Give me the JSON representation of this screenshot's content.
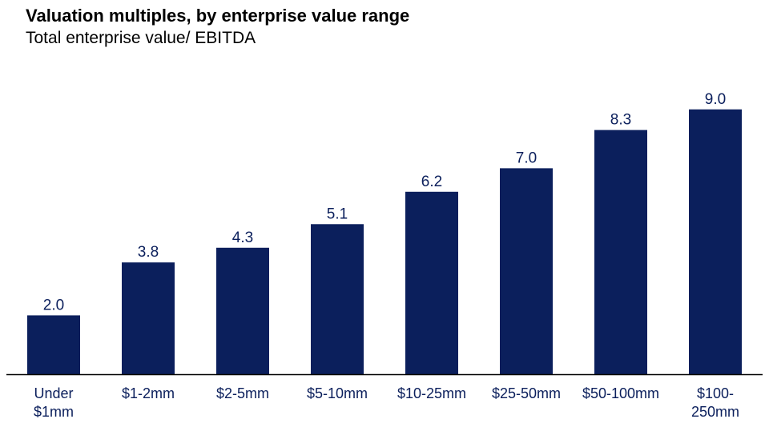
{
  "chart_data": {
    "type": "bar",
    "title": "Valuation multiples, by enterprise value range",
    "subtitle": "Total enterprise value/ EBITDA",
    "xlabel": "",
    "ylabel": "",
    "categories": [
      "Under $1mm",
      "$1-2mm",
      "$2-5mm",
      "$5-10mm",
      "$10-25mm",
      "$25-50mm",
      "$50-100mm",
      "$100-250mm"
    ],
    "category_lines": [
      [
        "Under",
        "$1mm"
      ],
      [
        "$1-2mm"
      ],
      [
        "$2-5mm"
      ],
      [
        "$5-10mm"
      ],
      [
        "$10-25mm"
      ],
      [
        "$25-50mm"
      ],
      [
        "$50-100mm"
      ],
      [
        "$100-",
        "250mm"
      ]
    ],
    "values": [
      2.0,
      3.8,
      4.3,
      5.1,
      6.2,
      7.0,
      8.3,
      9.0
    ],
    "data_labels": [
      "2.0",
      "3.8",
      "4.3",
      "5.1",
      "6.2",
      "7.0",
      "8.3",
      "9.0"
    ],
    "ylim": [
      0,
      10
    ],
    "grid": false,
    "legend": "none",
    "colors": {
      "bar": "#0B1F5C",
      "value_label": "#0B1F5C",
      "tick_label": "#0B1F5C",
      "axis": "#000000"
    }
  }
}
